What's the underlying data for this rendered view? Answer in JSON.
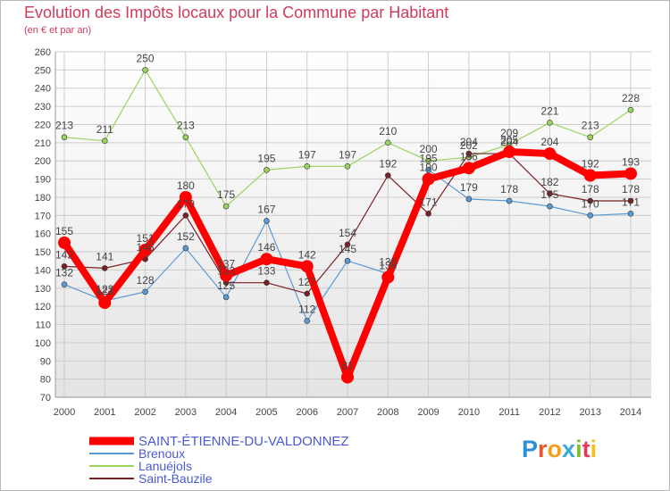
{
  "title": "Evolution des Impôts locaux pour la Commune par Habitant",
  "subtitle": "(en € et par an)",
  "logo": {
    "text": "Proxiti",
    "letter_colors": [
      "#2f8fd6",
      "#e8592a",
      "#f4a21b",
      "#3da7d8",
      "#7dbf2e",
      "#e23c5b",
      "#f2c21b"
    ]
  },
  "colors": {
    "title": "#d23a5a",
    "grid": "#cccccc",
    "axis_text": "#444444",
    "legend_text": "#4a5ad6",
    "plot_bg_top": "#ffffff",
    "plot_bg_bottom": "#e6e6e6"
  },
  "chart_data": {
    "type": "line",
    "title": "Evolution des Impôts locaux pour la Commune par Habitant",
    "subtitle": "(en € et par an)",
    "x": [
      2000,
      2001,
      2002,
      2003,
      2004,
      2005,
      2006,
      2007,
      2008,
      2009,
      2010,
      2011,
      2012,
      2013,
      2014
    ],
    "ylim": [
      70,
      260
    ],
    "yticks": [
      70,
      80,
      90,
      100,
      110,
      120,
      130,
      140,
      150,
      160,
      170,
      180,
      190,
      200,
      210,
      220,
      230,
      240,
      250,
      260
    ],
    "grid": true,
    "legend_position": "bottom-left",
    "series": [
      {
        "name": "SAINT-ÉTIENNE-DU-VALDONNEZ",
        "color": "#ff0000",
        "width": 8,
        "marker_r": 7,
        "values": [
          155,
          122,
          151,
          180,
          137,
          146,
          142,
          81,
          136,
          190,
          196,
          205,
          204,
          192,
          193
        ]
      },
      {
        "name": "Brenoux",
        "color": "#5b9bd5",
        "width": 1.2,
        "marker_r": 3,
        "values": [
          132,
          123,
          128,
          152,
          125,
          167,
          112,
          145,
          138,
          195,
          179,
          178,
          175,
          170,
          171
        ]
      },
      {
        "name": "Lanuéjols",
        "color": "#9ad45f",
        "width": 1.2,
        "marker_r": 3,
        "values": [
          213,
          211,
          250,
          213,
          175,
          195,
          197,
          197,
          210,
          200,
          202,
          209,
          221,
          213,
          228
        ]
      },
      {
        "name": "Saint-Bauzile",
        "color": "#7a1f24",
        "width": 1.2,
        "marker_r": 3,
        "values": [
          142,
          141,
          146,
          170,
          133,
          133,
          127,
          154,
          192,
          171,
          204,
          204,
          182,
          178,
          178
        ]
      }
    ]
  }
}
